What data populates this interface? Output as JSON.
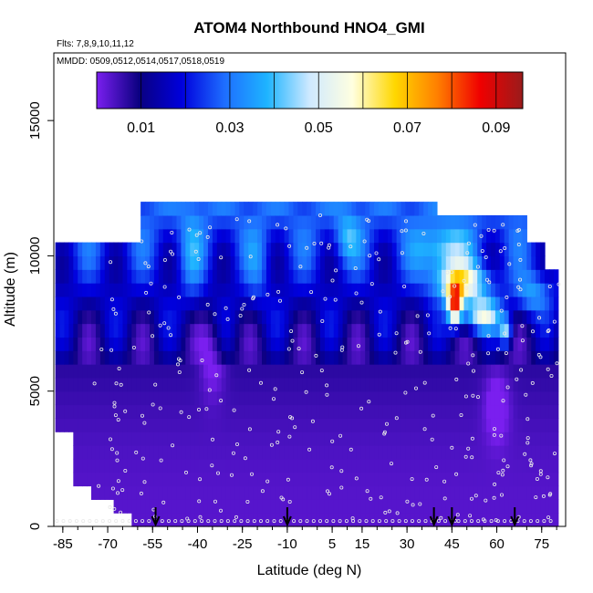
{
  "chart_data": {
    "type": "heatmap",
    "title": "ATOM4 Northbound HNO4_GMI",
    "annotations": {
      "flights": "Flts: 7,8,9,10,11,12",
      "dates": "MMDD: 0509,0512,0514,0517,0518,0519"
    },
    "xlabel": "Latitude (deg N)",
    "ylabel": "Altitude (m)",
    "xlim": [
      -88,
      83
    ],
    "ylim": [
      0,
      17500
    ],
    "x_ticks": [
      -85,
      -70,
      -55,
      -40,
      -25,
      -10,
      5,
      15,
      30,
      45,
      60,
      75
    ],
    "x_tick_labels": [
      "-85",
      "-70",
      "-55",
      "-40",
      "-25",
      "-10",
      "5",
      "15",
      "30",
      "45",
      "60",
      "75"
    ],
    "y_ticks": [
      0,
      5000,
      10000,
      15000
    ],
    "y_tick_labels": [
      "0",
      "5000",
      "10000",
      "15000"
    ],
    "colorbar": {
      "range": [
        0,
        0.096
      ],
      "tick_values": [
        0.01,
        0.03,
        0.05,
        0.07,
        0.09
      ],
      "tick_labels": [
        "0.01",
        "0.03",
        "0.05",
        "0.07",
        "0.09"
      ],
      "placement": "top-inside",
      "colors": [
        "#7a1fef",
        "#0a0080",
        "#0000dd",
        "#1e6eff",
        "#1eb4ff",
        "#cfe9ff",
        "#ffffe0",
        "#ffd700",
        "#ff7f00",
        "#f00000",
        "#9a1b1b"
      ]
    },
    "flight_marker_latitudes": [
      -54,
      -10,
      39,
      45,
      66
    ]
  }
}
